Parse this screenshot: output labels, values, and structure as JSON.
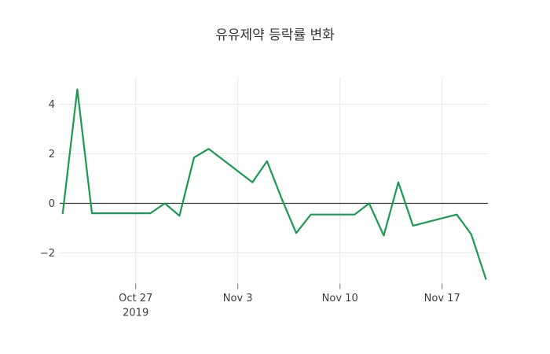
{
  "chart_data": {
    "type": "line",
    "title": "유유제약 등락률 변화",
    "xlabel": "",
    "ylabel": "",
    "grid": true,
    "legend": false,
    "ylim": [
      -3.45,
      5.1
    ],
    "y_ticks": [
      {
        "value": 4,
        "label": "4"
      },
      {
        "value": 2,
        "label": "2"
      },
      {
        "value": 0,
        "label": "0"
      },
      {
        "value": -2,
        "label": "−2"
      }
    ],
    "x_ticks": [
      {
        "date": "2019-10-27",
        "label": "Oct 27",
        "sublabel": "2019"
      },
      {
        "date": "2019-11-03",
        "label": "Nov 3",
        "sublabel": ""
      },
      {
        "date": "2019-11-10",
        "label": "Nov 10",
        "sublabel": ""
      },
      {
        "date": "2019-11-17",
        "label": "Nov 17",
        "sublabel": ""
      }
    ],
    "series": [
      {
        "name": "등락률",
        "color": "#1a9a52",
        "points": [
          {
            "date": "2019-10-22",
            "value": -0.4
          },
          {
            "date": "2019-10-23",
            "value": 4.6
          },
          {
            "date": "2019-10-24",
            "value": -0.4
          },
          {
            "date": "2019-10-25",
            "value": -0.4
          },
          {
            "date": "2019-10-28",
            "value": -0.4
          },
          {
            "date": "2019-10-29",
            "value": 0.0
          },
          {
            "date": "2019-10-30",
            "value": -0.5
          },
          {
            "date": "2019-10-31",
            "value": 1.85
          },
          {
            "date": "2019-11-01",
            "value": 2.2
          },
          {
            "date": "2019-11-04",
            "value": 0.85
          },
          {
            "date": "2019-11-05",
            "value": 1.7
          },
          {
            "date": "2019-11-06",
            "value": 0.2
          },
          {
            "date": "2019-11-07",
            "value": -1.2
          },
          {
            "date": "2019-11-08",
            "value": -0.45
          },
          {
            "date": "2019-11-11",
            "value": -0.45
          },
          {
            "date": "2019-11-12",
            "value": 0.0
          },
          {
            "date": "2019-11-13",
            "value": -1.3
          },
          {
            "date": "2019-11-14",
            "value": 0.85
          },
          {
            "date": "2019-11-15",
            "value": -0.9
          },
          {
            "date": "2019-11-18",
            "value": -0.45
          },
          {
            "date": "2019-11-19",
            "value": -1.25
          },
          {
            "date": "2019-11-20",
            "value": -3.05
          }
        ]
      }
    ],
    "colors": {
      "line": "#1a9a52",
      "grid": "#e8e8e8",
      "zero_line": "#3c3c3c",
      "tick_mark": "#777777",
      "text": "#3d3d3d",
      "title": "#363636",
      "background": "#ffffff"
    }
  }
}
